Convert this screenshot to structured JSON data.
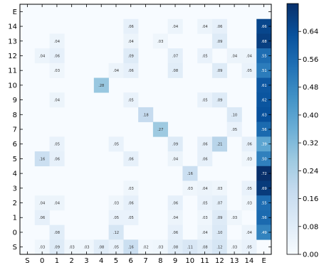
{
  "chart_data": {
    "type": "heatmap",
    "title": "",
    "xlabel": "",
    "ylabel": "",
    "x_categories": [
      "S",
      "0",
      "1",
      "2",
      "3",
      "4",
      "5",
      "6",
      "7",
      "8",
      "9",
      "10",
      "11",
      "12",
      "13",
      "14",
      "E"
    ],
    "y_categories": [
      "S",
      "0",
      "1",
      "2",
      "3",
      "4",
      "5",
      "6",
      "7",
      "8",
      "9",
      "10",
      "11",
      "12",
      "13",
      "14",
      "E"
    ],
    "colorbar": {
      "min": 0.0,
      "max": 0.72,
      "ticks": [
        0.0,
        0.08,
        0.16,
        0.24,
        0.32,
        0.4,
        0.48,
        0.56,
        0.64
      ],
      "tick_labels": [
        "0.00",
        "0.08",
        "0.16",
        "0.24",
        "0.32",
        "0.40",
        "0.48",
        "0.56",
        "0.64"
      ],
      "low_color": "#f7fbff",
      "high_color": "#08306b"
    },
    "cells": [
      {
        "row": "14",
        "col": "6",
        "value": 0.06,
        "label": ".06"
      },
      {
        "row": "14",
        "col": "9",
        "value": 0.04,
        "label": ".04"
      },
      {
        "row": "14",
        "col": "11",
        "value": 0.04,
        "label": ".04"
      },
      {
        "row": "14",
        "col": "12",
        "value": 0.06,
        "label": ".06"
      },
      {
        "row": "14",
        "col": "E",
        "value": 0.66,
        "label": ".66"
      },
      {
        "row": "13",
        "col": "1",
        "value": 0.04,
        "label": ".04"
      },
      {
        "row": "13",
        "col": "6",
        "value": 0.04,
        "label": ".04"
      },
      {
        "row": "13",
        "col": "8",
        "value": 0.03,
        "label": ".03"
      },
      {
        "row": "13",
        "col": "12",
        "value": 0.09,
        "label": ".09"
      },
      {
        "row": "13",
        "col": "E",
        "value": 0.68,
        "label": ".68"
      },
      {
        "row": "12",
        "col": "0",
        "value": 0.04,
        "label": ".04"
      },
      {
        "row": "12",
        "col": "1",
        "value": 0.06,
        "label": ".06"
      },
      {
        "row": "12",
        "col": "6",
        "value": 0.09,
        "label": ".09"
      },
      {
        "row": "12",
        "col": "9",
        "value": 0.07,
        "label": ".07"
      },
      {
        "row": "12",
        "col": "11",
        "value": 0.05,
        "label": ".05"
      },
      {
        "row": "12",
        "col": "13",
        "value": 0.04,
        "label": ".04"
      },
      {
        "row": "12",
        "col": "14",
        "value": 0.04,
        "label": ".04"
      },
      {
        "row": "12",
        "col": "E",
        "value": 0.55,
        "label": ".55"
      },
      {
        "row": "11",
        "col": "1",
        "value": 0.03,
        "label": ".03"
      },
      {
        "row": "11",
        "col": "5",
        "value": 0.04,
        "label": ".04"
      },
      {
        "row": "11",
        "col": "6",
        "value": 0.06,
        "label": ".06"
      },
      {
        "row": "11",
        "col": "9",
        "value": 0.08,
        "label": ".08"
      },
      {
        "row": "11",
        "col": "12",
        "value": 0.09,
        "label": ".09"
      },
      {
        "row": "11",
        "col": "14",
        "value": 0.05,
        "label": ".05"
      },
      {
        "row": "11",
        "col": "E",
        "value": 0.51,
        "label": ".51"
      },
      {
        "row": "10",
        "col": "4",
        "value": 0.28,
        "label": ".28"
      },
      {
        "row": "10",
        "col": "E",
        "value": 0.61,
        "label": ".61"
      },
      {
        "row": "9",
        "col": "1",
        "value": 0.04,
        "label": ".04"
      },
      {
        "row": "9",
        "col": "6",
        "value": 0.05,
        "label": ".05"
      },
      {
        "row": "9",
        "col": "11",
        "value": 0.05,
        "label": ".05"
      },
      {
        "row": "9",
        "col": "12",
        "value": 0.09,
        "label": ".09"
      },
      {
        "row": "9",
        "col": "E",
        "value": 0.62,
        "label": ".62"
      },
      {
        "row": "8",
        "col": "7",
        "value": 0.18,
        "label": ".18"
      },
      {
        "row": "8",
        "col": "13",
        "value": 0.1,
        "label": ".10"
      },
      {
        "row": "8",
        "col": "E",
        "value": 0.63,
        "label": ".63"
      },
      {
        "row": "7",
        "col": "8",
        "value": 0.27,
        "label": ".27"
      },
      {
        "row": "7",
        "col": "13",
        "value": 0.05,
        "label": ".05"
      },
      {
        "row": "7",
        "col": "E",
        "value": 0.56,
        "label": ".56"
      },
      {
        "row": "6",
        "col": "1",
        "value": 0.05,
        "label": ".05"
      },
      {
        "row": "6",
        "col": "5",
        "value": 0.05,
        "label": ".05"
      },
      {
        "row": "6",
        "col": "9",
        "value": 0.09,
        "label": ".09"
      },
      {
        "row": "6",
        "col": "11",
        "value": 0.06,
        "label": ".06"
      },
      {
        "row": "6",
        "col": "12",
        "value": 0.21,
        "label": ".21"
      },
      {
        "row": "6",
        "col": "14",
        "value": 0.06,
        "label": ".06"
      },
      {
        "row": "6",
        "col": "E",
        "value": 0.39,
        "label": ".39"
      },
      {
        "row": "5",
        "col": "0",
        "value": 0.16,
        "label": ".16"
      },
      {
        "row": "5",
        "col": "1",
        "value": 0.06,
        "label": ".06"
      },
      {
        "row": "5",
        "col": "6",
        "value": 0.06,
        "label": ".06"
      },
      {
        "row": "5",
        "col": "9",
        "value": 0.04,
        "label": ".04"
      },
      {
        "row": "5",
        "col": "11",
        "value": 0.06,
        "label": ".06"
      },
      {
        "row": "5",
        "col": "14",
        "value": 0.03,
        "label": ".03"
      },
      {
        "row": "5",
        "col": "E",
        "value": 0.5,
        "label": ".50"
      },
      {
        "row": "4",
        "col": "10",
        "value": 0.16,
        "label": ".16"
      },
      {
        "row": "4",
        "col": "E",
        "value": 0.72,
        "label": ".72"
      },
      {
        "row": "3",
        "col": "6",
        "value": 0.03,
        "label": ".03"
      },
      {
        "row": "3",
        "col": "10",
        "value": 0.03,
        "label": ".03"
      },
      {
        "row": "3",
        "col": "11",
        "value": 0.04,
        "label": ".04"
      },
      {
        "row": "3",
        "col": "12",
        "value": 0.03,
        "label": ".03"
      },
      {
        "row": "3",
        "col": "14",
        "value": 0.05,
        "label": ".05"
      },
      {
        "row": "3",
        "col": "E",
        "value": 0.69,
        "label": ".69"
      },
      {
        "row": "2",
        "col": "0",
        "value": 0.04,
        "label": ".04"
      },
      {
        "row": "2",
        "col": "1",
        "value": 0.04,
        "label": ".04"
      },
      {
        "row": "2",
        "col": "5",
        "value": 0.03,
        "label": ".03"
      },
      {
        "row": "2",
        "col": "6",
        "value": 0.06,
        "label": ".06"
      },
      {
        "row": "2",
        "col": "9",
        "value": 0.06,
        "label": ".06"
      },
      {
        "row": "2",
        "col": "11",
        "value": 0.05,
        "label": ".05"
      },
      {
        "row": "2",
        "col": "12",
        "value": 0.07,
        "label": ".07"
      },
      {
        "row": "2",
        "col": "14",
        "value": 0.03,
        "label": ".03"
      },
      {
        "row": "2",
        "col": "E",
        "value": 0.55,
        "label": ".55"
      },
      {
        "row": "1",
        "col": "0",
        "value": 0.06,
        "label": ".06"
      },
      {
        "row": "1",
        "col": "5",
        "value": 0.05,
        "label": ".05"
      },
      {
        "row": "1",
        "col": "6",
        "value": 0.05,
        "label": ".05"
      },
      {
        "row": "1",
        "col": "9",
        "value": 0.04,
        "label": ".04"
      },
      {
        "row": "1",
        "col": "11",
        "value": 0.03,
        "label": ".03"
      },
      {
        "row": "1",
        "col": "12",
        "value": 0.09,
        "label": ".09"
      },
      {
        "row": "1",
        "col": "13",
        "value": 0.03,
        "label": ".03"
      },
      {
        "row": "1",
        "col": "E",
        "value": 0.56,
        "label": ".56"
      },
      {
        "row": "0",
        "col": "1",
        "value": 0.08,
        "label": ".08"
      },
      {
        "row": "0",
        "col": "5",
        "value": 0.12,
        "label": ".12"
      },
      {
        "row": "0",
        "col": "9",
        "value": 0.06,
        "label": ".06"
      },
      {
        "row": "0",
        "col": "11",
        "value": 0.04,
        "label": ".04"
      },
      {
        "row": "0",
        "col": "12",
        "value": 0.1,
        "label": ".10"
      },
      {
        "row": "0",
        "col": "14",
        "value": 0.04,
        "label": ".04"
      },
      {
        "row": "0",
        "col": "E",
        "value": 0.49,
        "label": ".49"
      },
      {
        "row": "S",
        "col": "0",
        "value": 0.03,
        "label": ".03"
      },
      {
        "row": "S",
        "col": "1",
        "value": 0.09,
        "label": ".09"
      },
      {
        "row": "S",
        "col": "2",
        "value": 0.03,
        "label": ".03"
      },
      {
        "row": "S",
        "col": "3",
        "value": 0.03,
        "label": ".03"
      },
      {
        "row": "S",
        "col": "4",
        "value": 0.08,
        "label": ".08"
      },
      {
        "row": "S",
        "col": "5",
        "value": 0.05,
        "label": ".05"
      },
      {
        "row": "S",
        "col": "6",
        "value": 0.16,
        "label": ".16"
      },
      {
        "row": "S",
        "col": "7",
        "value": 0.02,
        "label": ".02"
      },
      {
        "row": "S",
        "col": "8",
        "value": 0.03,
        "label": ".03"
      },
      {
        "row": "S",
        "col": "9",
        "value": 0.08,
        "label": ".08"
      },
      {
        "row": "S",
        "col": "10",
        "value": 0.11,
        "label": ".11"
      },
      {
        "row": "S",
        "col": "11",
        "value": 0.08,
        "label": ".08"
      },
      {
        "row": "S",
        "col": "12",
        "value": 0.12,
        "label": ".12"
      },
      {
        "row": "S",
        "col": "13",
        "value": 0.03,
        "label": ".03"
      },
      {
        "row": "S",
        "col": "14",
        "value": 0.05,
        "label": ".05"
      }
    ]
  }
}
